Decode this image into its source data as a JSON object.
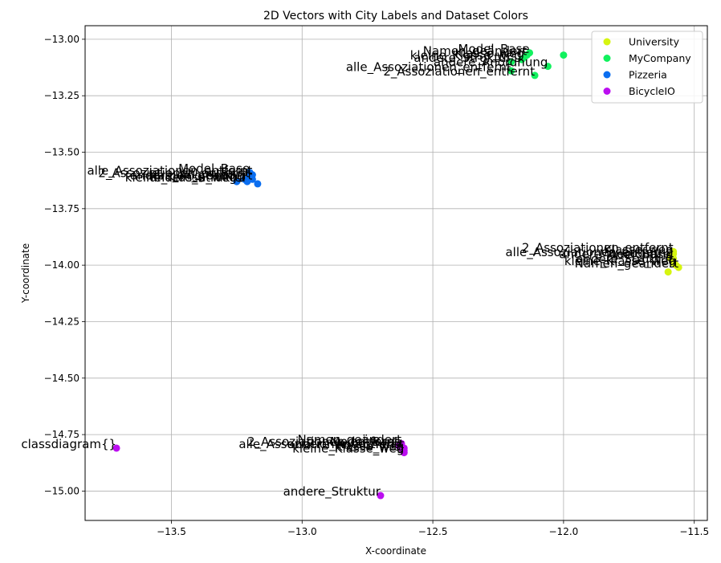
{
  "chart_data": {
    "type": "scatter",
    "title": "2D Vectors with City Labels and Dataset Colors",
    "xlabel": "X-coordinate",
    "ylabel": "Y-coordinate",
    "xlim": [
      -13.83,
      -11.45
    ],
    "ylim": [
      -15.13,
      -12.94
    ],
    "xticks": [
      -13.5,
      -13.0,
      -12.5,
      -12.0,
      -11.5
    ],
    "xtick_labels": [
      "−13.5",
      "−13.0",
      "−12.5",
      "−12.0",
      "−11.5"
    ],
    "yticks": [
      -13.0,
      -13.25,
      -13.5,
      -13.75,
      -14.0,
      -14.25,
      -14.5,
      -14.75,
      -15.0
    ],
    "ytick_labels": [
      "−13.00",
      "−13.25",
      "−13.50",
      "−13.75",
      "−14.00",
      "−14.25",
      "−14.50",
      "−14.75",
      "−15.00"
    ],
    "grid": true,
    "legend_position": "top-right",
    "series": [
      {
        "name": "University",
        "color": "#d6f510",
        "points": [
          {
            "x": -11.58,
            "y": -13.94,
            "label": "2_Assoziationen_entfernt"
          },
          {
            "x": -11.58,
            "y": -13.95,
            "label": "Klasse_weg"
          },
          {
            "x": -11.59,
            "y": -13.96,
            "label": "alle_Assoziationen_entfernt"
          },
          {
            "x": -11.58,
            "y": -13.97,
            "label": "andere_Anordnung"
          },
          {
            "x": -11.59,
            "y": -13.97,
            "label": "Model_Base"
          },
          {
            "x": -11.58,
            "y": -13.99,
            "label": "andere_Struktur"
          },
          {
            "x": -11.57,
            "y": -14.0,
            "label": "kleine_Klasse_weg"
          },
          {
            "x": -11.56,
            "y": -14.01,
            "label": "Namen_geändert"
          },
          {
            "x": -11.6,
            "y": -14.03,
            "label": ""
          }
        ]
      },
      {
        "name": "MyCompany",
        "color": "#11f15e",
        "points": [
          {
            "x": -12.13,
            "y": -13.06,
            "label": "Model_Base"
          },
          {
            "x": -12.14,
            "y": -13.07,
            "label": "Namen_geändert"
          },
          {
            "x": -12.15,
            "y": -13.08,
            "label": "Klasse_weg"
          },
          {
            "x": -12.16,
            "y": -13.09,
            "label": "kleine_Klasse_weg"
          },
          {
            "x": -12.0,
            "y": -13.07,
            "label": ""
          },
          {
            "x": -12.2,
            "y": -13.1,
            "label": "andere_Struktur"
          },
          {
            "x": -12.06,
            "y": -13.12,
            "label": "andere_Anordnung"
          },
          {
            "x": -12.2,
            "y": -13.14,
            "label": "alle_Assoziationen_entfernt"
          },
          {
            "x": -12.11,
            "y": -13.16,
            "label": "2_Assoziationen_entfernt"
          }
        ]
      },
      {
        "name": "Pizzeria",
        "color": "#0b6ef0",
        "points": [
          {
            "x": -13.2,
            "y": -13.59,
            "label": "Model_Base"
          },
          {
            "x": -13.19,
            "y": -13.6,
            "label": "alle_Assoziationen_entfernt"
          },
          {
            "x": -13.2,
            "y": -13.61,
            "label": "2_Assoziationen_entfernt"
          },
          {
            "x": -13.19,
            "y": -13.62,
            "label": "Namen_geändert"
          },
          {
            "x": -13.22,
            "y": -13.62,
            "label": "andere_Anordnung"
          },
          {
            "x": -13.21,
            "y": -13.63,
            "label": "andere_Struktur"
          },
          {
            "x": -13.25,
            "y": -13.63,
            "label": "kleine_Klasse_weg"
          },
          {
            "x": -13.17,
            "y": -13.64,
            "label": ""
          }
        ]
      },
      {
        "name": "BicycleIO",
        "color": "#bb0ef0",
        "points": [
          {
            "x": -13.71,
            "y": -14.81,
            "label": "classdiagram{}"
          },
          {
            "x": -12.62,
            "y": -14.79,
            "label": "Namen_geändert"
          },
          {
            "x": -12.62,
            "y": -14.8,
            "label": "Model_Base"
          },
          {
            "x": -12.63,
            "y": -14.8,
            "label": "2_Assoziationen_entfernt"
          },
          {
            "x": -12.61,
            "y": -14.81,
            "label": "alle_Assoziationen_entfernt"
          },
          {
            "x": -12.62,
            "y": -14.81,
            "label": "andere_Anordnung"
          },
          {
            "x": -12.61,
            "y": -14.82,
            "label": "Klasse_weg"
          },
          {
            "x": -12.61,
            "y": -14.83,
            "label": "kleine_Klasse_weg"
          },
          {
            "x": -12.7,
            "y": -15.02,
            "label": "andere_Struktur"
          }
        ]
      }
    ]
  }
}
